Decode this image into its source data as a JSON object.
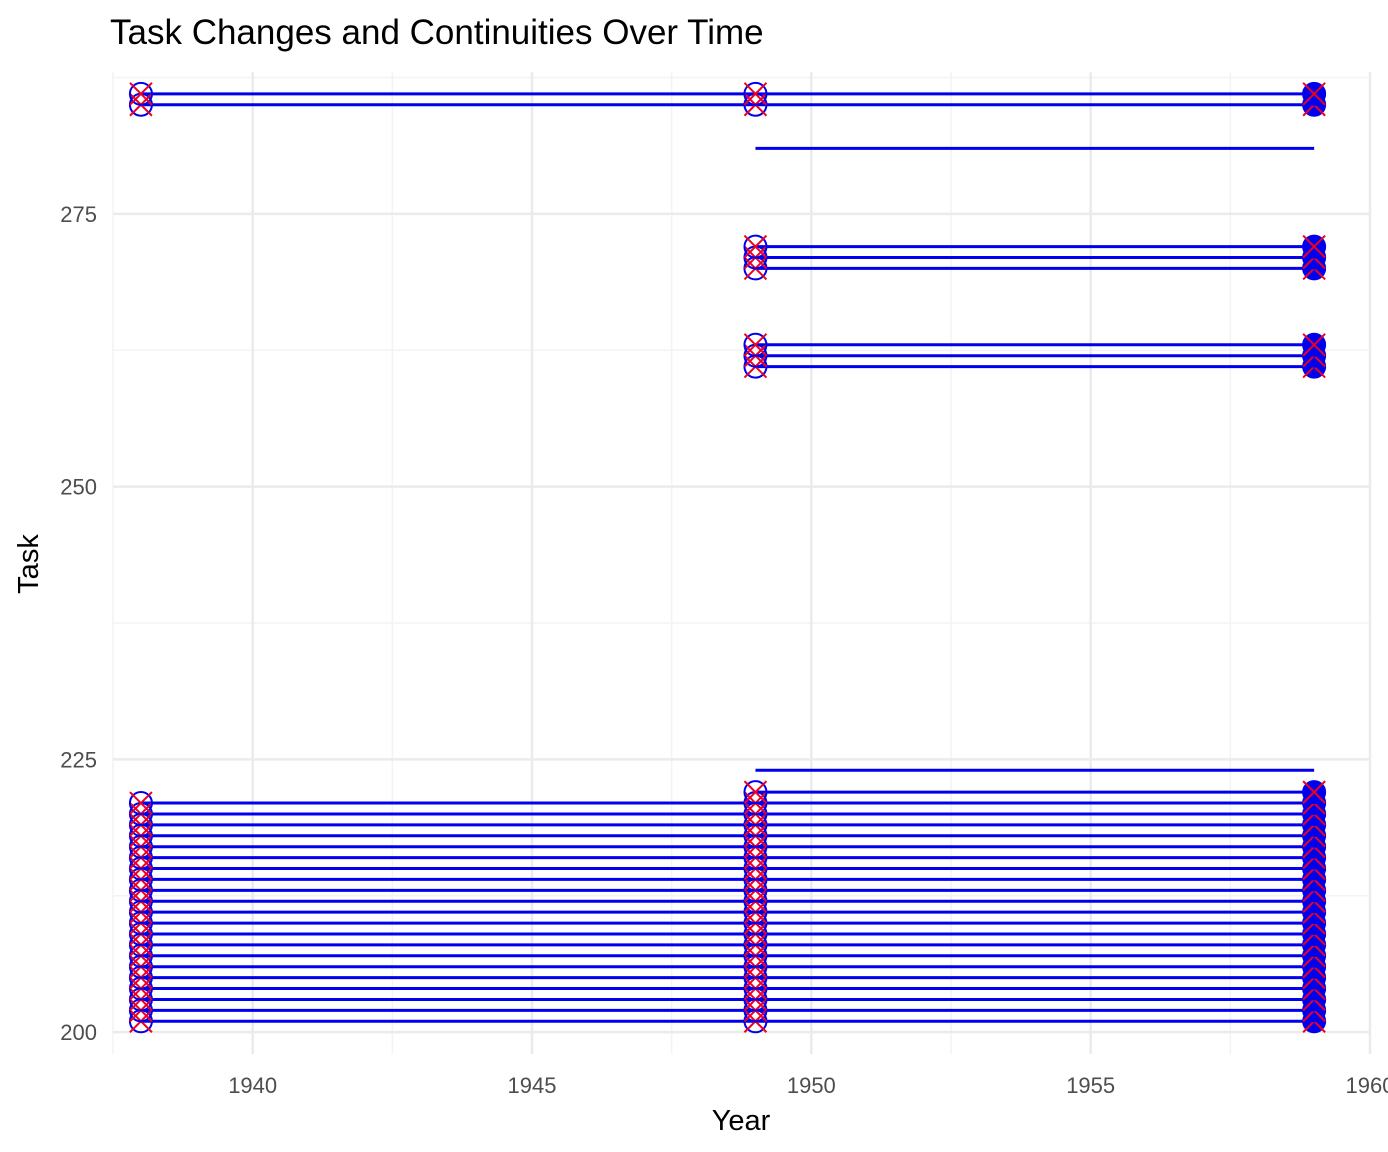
{
  "chart_data": {
    "type": "line",
    "title": "Task Changes and Continuities Over Time",
    "xlabel": "Year",
    "ylabel": "Task",
    "xlim": [
      1937.5,
      1960
    ],
    "ylim": [
      198,
      288
    ],
    "x_ticks": [
      1940,
      1945,
      1950,
      1955,
      1960
    ],
    "x_tick_labels": [
      "1940",
      "1945",
      "1950",
      "1955",
      "1960"
    ],
    "y_ticks": [
      200,
      225,
      250,
      275
    ],
    "y_tick_labels": [
      "200",
      "225",
      "250",
      "275"
    ],
    "grid": true,
    "legend": "none",
    "segments": [
      {
        "task": 285,
        "x_start": 1938,
        "x_end": 1959
      },
      {
        "task": 286,
        "x_start": 1938,
        "x_end": 1959
      },
      {
        "task": 281,
        "x_start": 1949,
        "x_end": 1959
      },
      {
        "task": 270,
        "x_start": 1949,
        "x_end": 1959
      },
      {
        "task": 271,
        "x_start": 1949,
        "x_end": 1959
      },
      {
        "task": 272,
        "x_start": 1949,
        "x_end": 1959
      },
      {
        "task": 261,
        "x_start": 1949,
        "x_end": 1959
      },
      {
        "task": 262,
        "x_start": 1949,
        "x_end": 1959
      },
      {
        "task": 263,
        "x_start": 1949,
        "x_end": 1959
      },
      {
        "task": 224,
        "x_start": 1949,
        "x_end": 1959
      },
      {
        "task": 222,
        "x_start": 1949,
        "x_end": 1959
      },
      {
        "task": 201,
        "x_start": 1938,
        "x_end": 1959
      },
      {
        "task": 202,
        "x_start": 1938,
        "x_end": 1959
      },
      {
        "task": 203,
        "x_start": 1938,
        "x_end": 1959
      },
      {
        "task": 204,
        "x_start": 1938,
        "x_end": 1959
      },
      {
        "task": 205,
        "x_start": 1938,
        "x_end": 1959
      },
      {
        "task": 206,
        "x_start": 1938,
        "x_end": 1959
      },
      {
        "task": 207,
        "x_start": 1938,
        "x_end": 1959
      },
      {
        "task": 208,
        "x_start": 1938,
        "x_end": 1959
      },
      {
        "task": 209,
        "x_start": 1938,
        "x_end": 1959
      },
      {
        "task": 210,
        "x_start": 1938,
        "x_end": 1959
      },
      {
        "task": 211,
        "x_start": 1938,
        "x_end": 1959
      },
      {
        "task": 212,
        "x_start": 1938,
        "x_end": 1959
      },
      {
        "task": 213,
        "x_start": 1938,
        "x_end": 1959
      },
      {
        "task": 214,
        "x_start": 1938,
        "x_end": 1959
      },
      {
        "task": 215,
        "x_start": 1938,
        "x_end": 1959
      },
      {
        "task": 216,
        "x_start": 1938,
        "x_end": 1959
      },
      {
        "task": 217,
        "x_start": 1938,
        "x_end": 1959
      },
      {
        "task": 218,
        "x_start": 1938,
        "x_end": 1959
      },
      {
        "task": 219,
        "x_start": 1938,
        "x_end": 1959
      },
      {
        "task": 220,
        "x_start": 1938,
        "x_end": 1959
      },
      {
        "task": 221,
        "x_start": 1938,
        "x_end": 1959
      }
    ],
    "x_markers": [
      {
        "x": 1938,
        "tasks": [
          201,
          202,
          203,
          204,
          205,
          206,
          207,
          208,
          209,
          210,
          211,
          212,
          213,
          214,
          215,
          216,
          217,
          218,
          219,
          220,
          221,
          285,
          286
        ]
      },
      {
        "x": 1949,
        "tasks": [
          201,
          202,
          203,
          204,
          205,
          206,
          207,
          208,
          209,
          210,
          211,
          212,
          213,
          214,
          215,
          216,
          217,
          218,
          219,
          220,
          221,
          222,
          285,
          286,
          261,
          262,
          263,
          270,
          271,
          272
        ]
      },
      {
        "x": 1959,
        "tasks": [
          201,
          202,
          203,
          204,
          205,
          206,
          207,
          208,
          209,
          210,
          211,
          212,
          213,
          214,
          215,
          216,
          217,
          218,
          219,
          220,
          221,
          222,
          261,
          262,
          263,
          270,
          271,
          272,
          285,
          286
        ]
      }
    ],
    "colors": {
      "line": "#0000ee",
      "open_circle": "#0000ee",
      "x_marker": "#ee0022",
      "filled_circle": "#0000ee",
      "grid_major": "#ebebeb",
      "grid_minor": "#f3f3f3"
    }
  }
}
